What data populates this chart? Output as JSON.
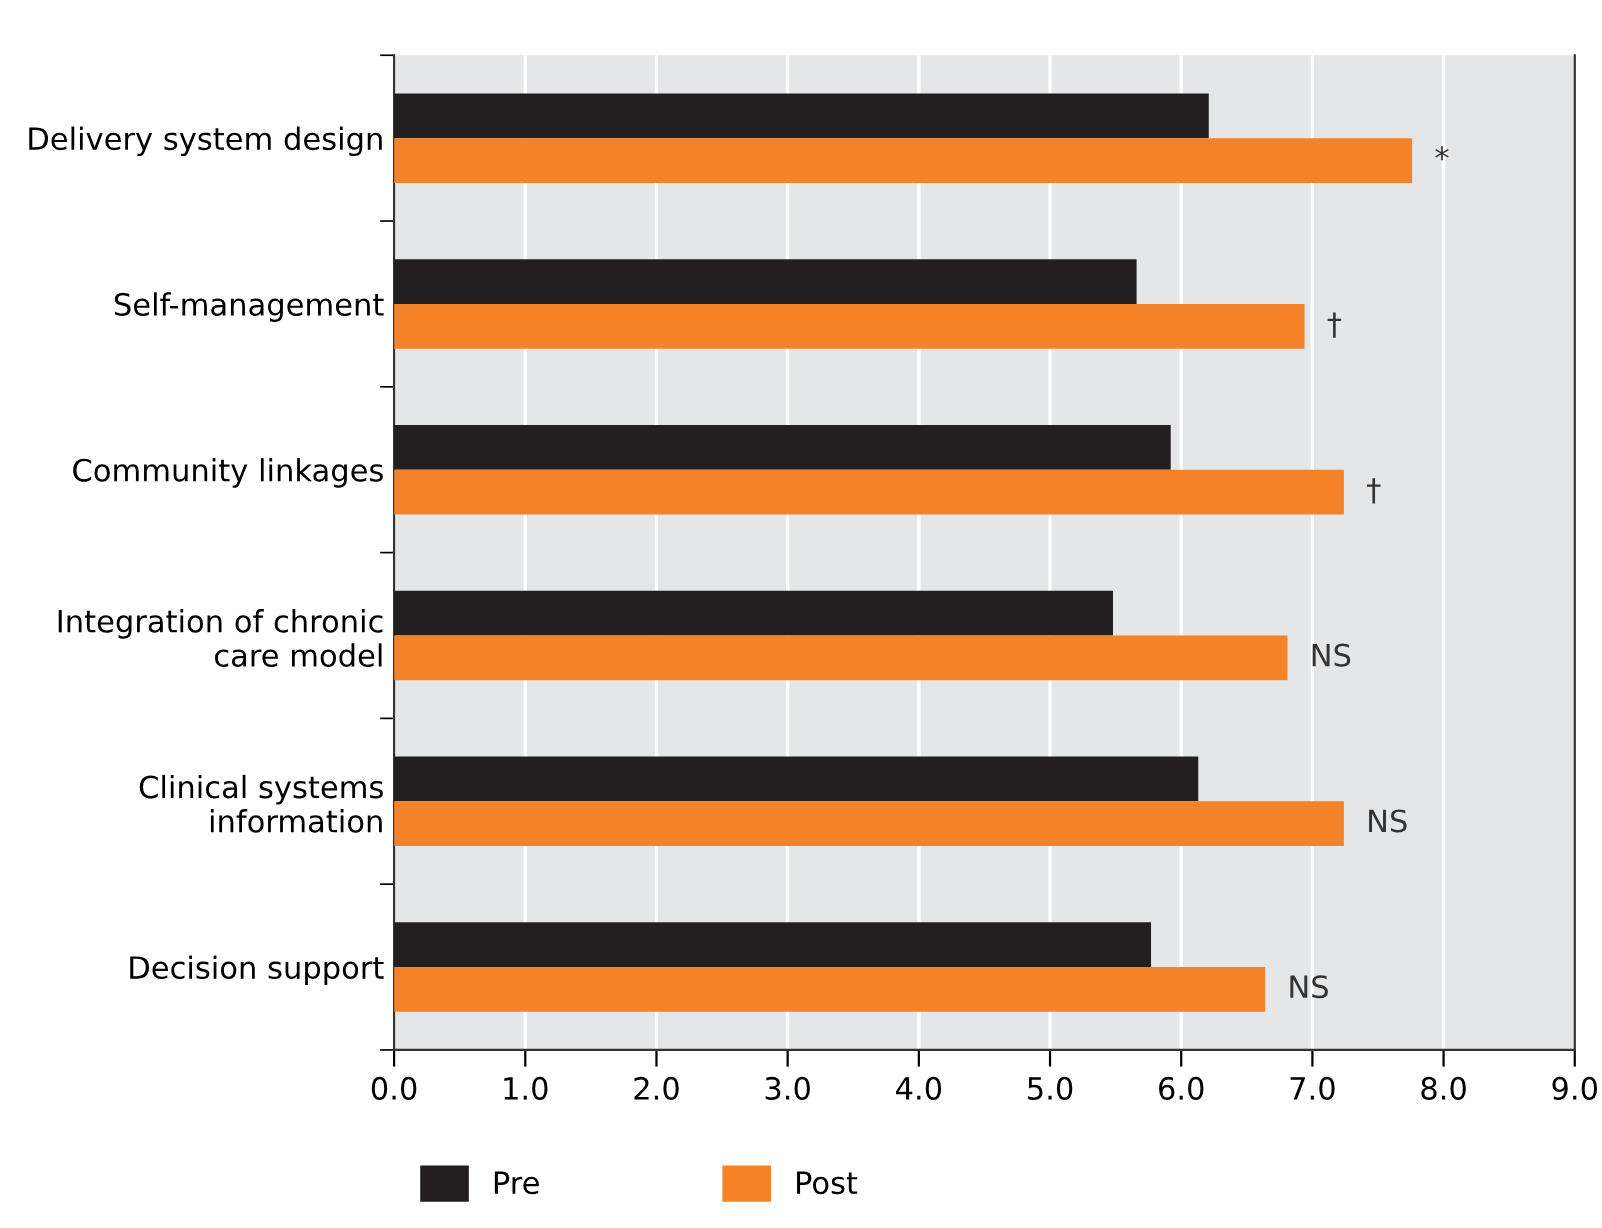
{
  "chart_data": {
    "type": "bar",
    "orientation": "horizontal",
    "categories": [
      "Delivery system design",
      "Self-management",
      "Community linkages",
      "Integration of chronic\ncare model",
      "Clinical systems\ninformation",
      "Decision support"
    ],
    "series": [
      {
        "name": "Pre",
        "color": "#231f20",
        "values": [
          6.21,
          5.66,
          5.92,
          5.48,
          6.13,
          5.77
        ]
      },
      {
        "name": "Post",
        "color": "#f58226",
        "values": [
          7.76,
          6.94,
          7.24,
          6.81,
          7.24,
          6.64
        ]
      }
    ],
    "xlim": [
      0,
      9
    ],
    "xticks": [
      {
        "value": 0,
        "label": "0.0"
      },
      {
        "value": 1,
        "label": "1.0"
      },
      {
        "value": 2,
        "label": "2.0"
      },
      {
        "value": 3,
        "label": "3.0"
      },
      {
        "value": 4,
        "label": "4.0"
      },
      {
        "value": 5,
        "label": "5.0"
      },
      {
        "value": 6,
        "label": "6.0"
      },
      {
        "value": 7,
        "label": "7.0"
      },
      {
        "value": 8,
        "label": "8.0"
      },
      {
        "value": 9,
        "label": "9.0"
      }
    ],
    "grid": "x",
    "legend": "bottom",
    "annotations": [
      {
        "text": "*",
        "x": 7.76,
        "y": "Delivery system design"
      },
      {
        "text": "†",
        "x": 6.94,
        "y": "Self-management"
      },
      {
        "text": "†",
        "x": 7.24,
        "y": "Community linkages"
      },
      {
        "text": "NS",
        "x": 6.81,
        "y": "Integration of chronic\ncare model"
      },
      {
        "text": "NS",
        "x": 7.24,
        "y": "Clinical systems\ninformation"
      },
      {
        "text": "NS",
        "x": 6.64,
        "y": "Decision support"
      }
    ]
  }
}
